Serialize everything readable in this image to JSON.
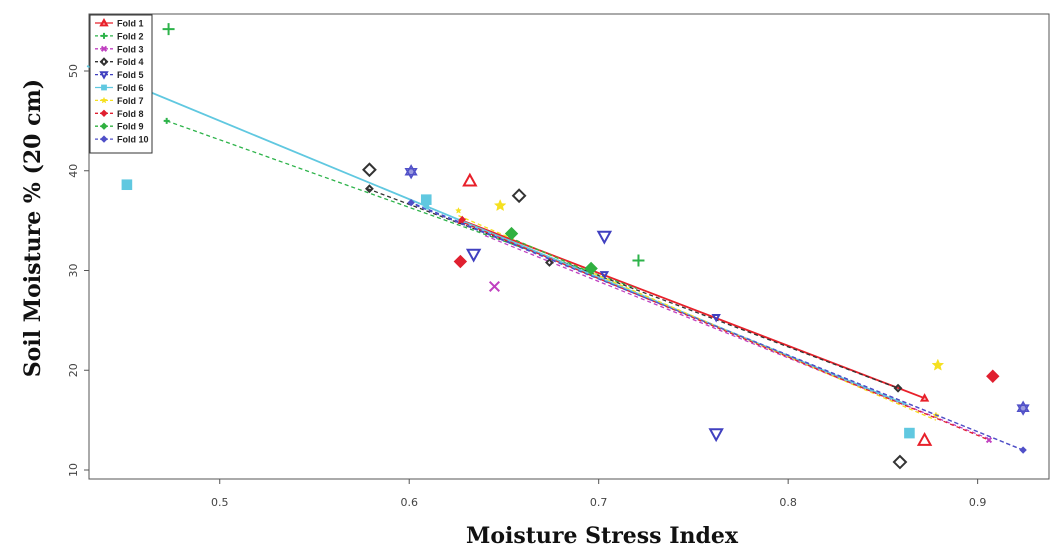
{
  "chart_data": {
    "type": "scatter",
    "title": "",
    "xlabel": "Moisture Stress Index",
    "ylabel": "Soil Moisture % (20 cm)",
    "xlim": [
      0.43,
      0.93
    ],
    "ylim": [
      9,
      55
    ],
    "x_ticks": [
      "0.5",
      "0.6",
      "0.7",
      "0.8",
      "0.9"
    ],
    "y_ticks": [
      "10",
      "20",
      "30",
      "40",
      "50"
    ],
    "grid": false,
    "legend_position": "top-left",
    "series": [
      {
        "name": "Fold 1",
        "color": "#e8202a",
        "marker": "triangle",
        "line": [
          [
            0.628,
            35.0
          ],
          [
            0.872,
            17.2
          ]
        ],
        "line_style": "solid",
        "points": [
          [
            0.632,
            39.0
          ],
          [
            0.872,
            13.0
          ]
        ],
        "line_points": [
          [
            0.628,
            35.0
          ],
          [
            0.872,
            17.2
          ]
        ]
      },
      {
        "name": "Fold 2",
        "color": "#2db34a",
        "marker": "plus",
        "line": [
          [
            0.472,
            45.0
          ],
          [
            0.72,
            28.2
          ]
        ],
        "line_style": "dashed",
        "points": [
          [
            0.473,
            54.2
          ],
          [
            0.721,
            31.0
          ]
        ],
        "line_points": [
          [
            0.472,
            45.0
          ]
        ]
      },
      {
        "name": "Fold 3",
        "color": "#c040c0",
        "marker": "cross",
        "line": [
          [
            0.64,
            33.5
          ],
          [
            0.905,
            13.2
          ]
        ],
        "line_style": "dashed",
        "points": [
          [
            0.645,
            28.4
          ]
        ],
        "line_points": [
          [
            0.906,
            13.0
          ]
        ]
      },
      {
        "name": "Fold 4",
        "color": "#333333",
        "marker": "diamond",
        "line": [
          [
            0.578,
            38.2
          ],
          [
            0.858,
            18.2
          ]
        ],
        "line_style": "dashed",
        "points": [
          [
            0.579,
            40.1
          ],
          [
            0.658,
            37.5
          ],
          [
            0.859,
            10.8
          ]
        ],
        "line_points": [
          [
            0.579,
            38.2
          ],
          [
            0.674,
            30.8
          ],
          [
            0.858,
            18.2
          ]
        ]
      },
      {
        "name": "Fold 5",
        "color": "#4040c0",
        "marker": "triangle-down",
        "line": [
          [
            0.6,
            36.9
          ],
          [
            0.924,
            12.0
          ]
        ],
        "line_style": "dashed",
        "points": [
          [
            0.634,
            31.6
          ],
          [
            0.703,
            33.4
          ],
          [
            0.762,
            13.6
          ]
        ],
        "line_points": [
          [
            0.762,
            25.3
          ],
          [
            0.703,
            29.6
          ]
        ]
      },
      {
        "name": "Fold 6",
        "color": "#60c8e0",
        "marker": "square",
        "line": [
          [
            0.43,
            50.5
          ],
          [
            0.863,
            16.5
          ]
        ],
        "line_style": "solid",
        "points": [
          [
            0.451,
            38.6
          ],
          [
            0.609,
            37.1
          ],
          [
            0.864,
            13.7
          ]
        ],
        "line_points": [
          [
            0.609,
            36.4
          ]
        ]
      },
      {
        "name": "Fold 7",
        "color": "#f5e020",
        "marker": "star",
        "line": [
          [
            0.626,
            35.5
          ],
          [
            0.878,
            15.0
          ]
        ],
        "line_style": "dashed",
        "points": [
          [
            0.648,
            36.5
          ],
          [
            0.879,
            20.5
          ]
        ],
        "line_points": [
          [
            0.626,
            36.0
          ],
          [
            0.878,
            15.5
          ]
        ]
      },
      {
        "name": "Fold 8",
        "color": "#e02030",
        "marker": "diamond-filled",
        "line": [
          [
            0.626,
            35.0
          ],
          [
            0.906,
            13.0
          ]
        ],
        "line_style": "dashed",
        "points": [
          [
            0.627,
            30.9
          ],
          [
            0.908,
            19.4
          ]
        ],
        "line_points": [
          [
            0.628,
            35.1
          ]
        ]
      },
      {
        "name": "Fold 9",
        "color": "#30b040",
        "marker": "diamond-filled",
        "line": [
          [
            0.653,
            33.3
          ],
          [
            0.696,
            29.8
          ]
        ],
        "line_style": "dashed",
        "points": [
          [
            0.654,
            33.7
          ],
          [
            0.696,
            30.2
          ]
        ],
        "line_points": []
      },
      {
        "name": "Fold 10",
        "color": "#5050c8",
        "marker": "hexagram",
        "line": [
          [
            0.6,
            36.8
          ],
          [
            0.924,
            12.0
          ]
        ],
        "line_style": "dashed",
        "points": [
          [
            0.601,
            39.9
          ],
          [
            0.924,
            16.2
          ]
        ],
        "line_points": [
          [
            0.601,
            36.8
          ],
          [
            0.924,
            12.0
          ]
        ]
      }
    ]
  }
}
